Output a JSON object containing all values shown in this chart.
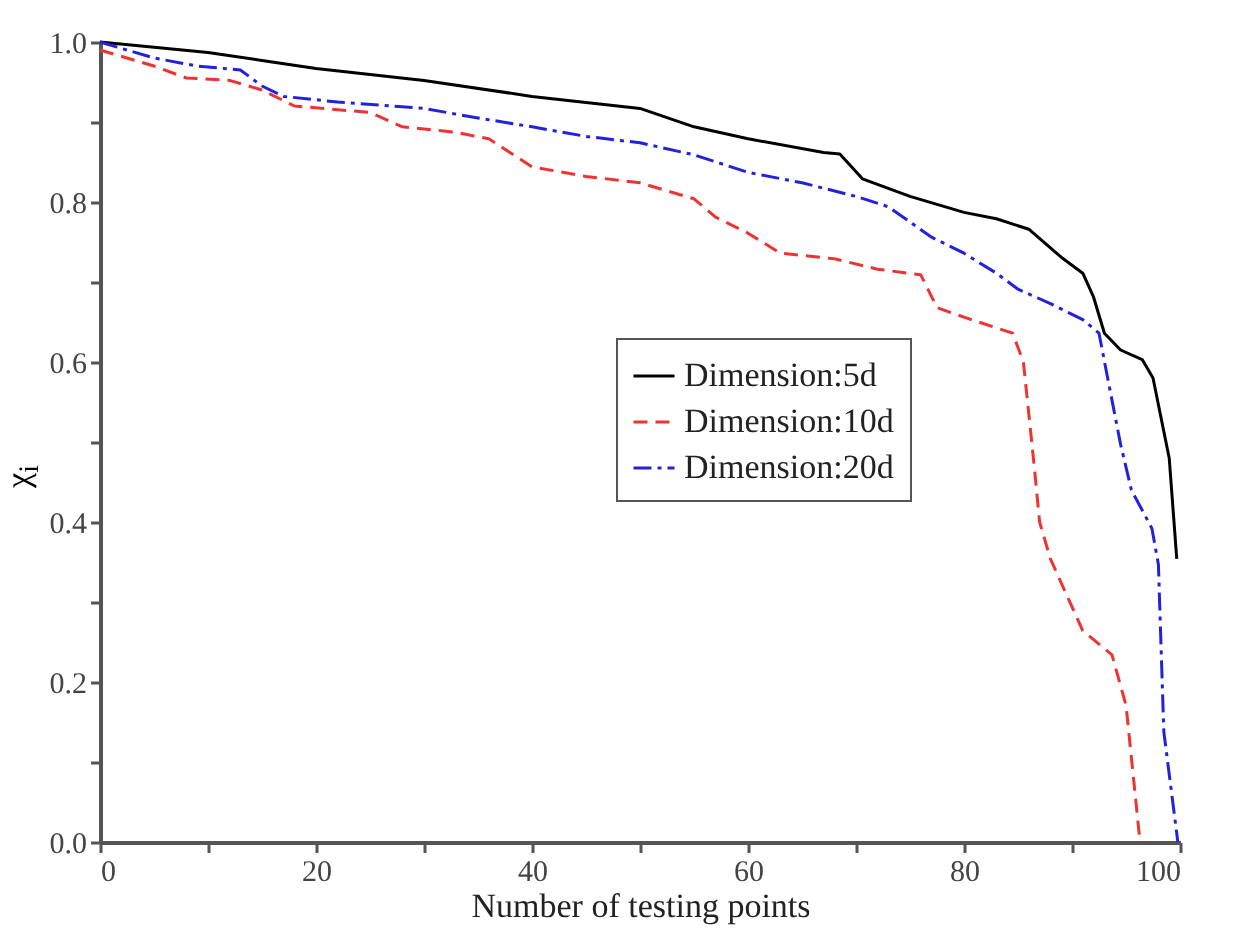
{
  "chart_data": {
    "type": "line",
    "xlabel": "Number of testing points",
    "ylabel": "χ$_{i}$",
    "xlim": [
      0,
      100
    ],
    "ylim": [
      0,
      1
    ],
    "xticks": [
      0,
      {
        "value": 10,
        "label": null
      },
      20,
      {
        "value": 30,
        "label": null
      },
      40,
      {
        "value": 50,
        "label": null
      },
      60,
      {
        "value": 70,
        "label": null
      },
      80,
      {
        "value": 90,
        "label": null
      },
      100
    ],
    "yticks": [
      {
        "value": 0,
        "label": "0.0"
      },
      {
        "value": 0.1,
        "label": null
      },
      0.2,
      {
        "value": 0.3,
        "label": null
      },
      0.4,
      {
        "value": 0.5,
        "label": null
      },
      0.6,
      {
        "value": 0.7,
        "label": null
      },
      0.8,
      {
        "value": 0.9,
        "label": null
      },
      {
        "value": 1,
        "label": "1.0"
      }
    ],
    "grid": false,
    "legend": "right",
    "marker": "none",
    "series": [
      {
        "name": "Dimension:5d",
        "color": "#000000",
        "line_style": "solid",
        "x": [
          0,
          10,
          15,
          20,
          30,
          40,
          50,
          55,
          60,
          67,
          68.5,
          70.6,
          75,
          80,
          83,
          86,
          89,
          91,
          92,
          93,
          94.5,
          96.5,
          97.5,
          99,
          99.7
        ],
        "values": [
          1.0,
          0.987,
          0.977,
          0.967,
          0.952,
          0.932,
          0.917,
          0.894,
          0.879,
          0.862,
          0.86,
          0.829,
          0.807,
          0.787,
          0.779,
          0.766,
          0.731,
          0.711,
          0.681,
          0.636,
          0.615,
          0.603,
          0.58,
          0.48,
          0.354
        ]
      },
      {
        "name": "Dimension:10d",
        "color": "#ee3333",
        "line_style": "dashed",
        "x": [
          0,
          5,
          8,
          12,
          15,
          18,
          25,
          28,
          33,
          36,
          40,
          45,
          50,
          55,
          57,
          60,
          63,
          68,
          72,
          76,
          77.5,
          80,
          84.5,
          85.5,
          86.5,
          87,
          88,
          91,
          93.7,
          95,
          96.3
        ],
        "values": [
          0.99,
          0.97,
          0.955,
          0.952,
          0.94,
          0.92,
          0.912,
          0.894,
          0.887,
          0.879,
          0.844,
          0.832,
          0.824,
          0.804,
          0.781,
          0.761,
          0.736,
          0.729,
          0.716,
          0.709,
          0.668,
          0.656,
          0.636,
          0.6,
          0.47,
          0.4,
          0.354,
          0.264,
          0.234,
          0.171,
          0.0
        ]
      },
      {
        "name": "Dimension:20d",
        "color": "#2222dd",
        "line_style": "dashdot",
        "x": [
          0,
          5,
          9,
          13,
          15,
          17,
          22,
          30,
          35,
          40,
          45,
          50,
          55,
          60,
          65,
          70,
          73,
          77,
          80,
          83,
          85,
          88,
          91,
          92.5,
          93.3,
          94.5,
          95.5,
          97.4,
          98,
          98.5,
          99.8
        ],
        "values": [
          1.0,
          0.98,
          0.97,
          0.965,
          0.945,
          0.932,
          0.925,
          0.917,
          0.905,
          0.894,
          0.882,
          0.874,
          0.859,
          0.837,
          0.824,
          0.807,
          0.794,
          0.756,
          0.736,
          0.711,
          0.691,
          0.673,
          0.653,
          0.636,
          0.58,
          0.497,
          0.44,
          0.392,
          0.347,
          0.138,
          0.0
        ]
      }
    ]
  }
}
